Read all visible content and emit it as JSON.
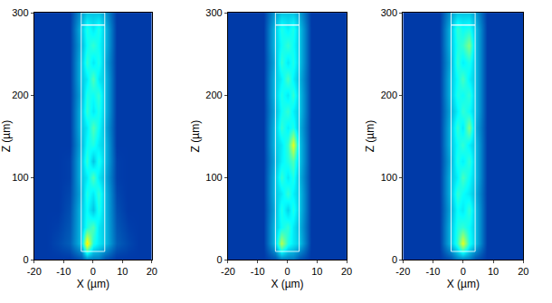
{
  "chart_data": [
    {
      "type": "heatmap",
      "x_label": "X (µm)",
      "y_label": "Z (µm)",
      "xlim": [
        -20,
        20
      ],
      "ylim": [
        0,
        300
      ],
      "xticks": [
        -20,
        -10,
        0,
        10,
        20
      ],
      "yticks": [
        0,
        100,
        200,
        300
      ],
      "zlim": [
        0,
        1
      ],
      "outline": {
        "x": [
          -4,
          4
        ],
        "y": [
          10,
          285
        ]
      },
      "grating": {
        "x": [
          -4,
          4
        ],
        "y": [
          285,
          300
        ]
      },
      "x": [
        -20,
        -16,
        -12,
        -8,
        -4,
        -2,
        0,
        2,
        4,
        8,
        12,
        16,
        20
      ],
      "y": [
        0,
        20,
        40,
        60,
        80,
        100,
        120,
        140,
        160,
        180,
        200,
        220,
        240,
        260,
        280,
        300
      ],
      "cells": [
        [
          0.12,
          0.12,
          0.12,
          0.12,
          0.15,
          0.2,
          0.2,
          0.2,
          0.15,
          0.12,
          0.12,
          0.12,
          0.12
        ],
        [
          0.12,
          0.12,
          0.14,
          0.17,
          0.3,
          0.65,
          0.4,
          0.35,
          0.3,
          0.17,
          0.14,
          0.12,
          0.12
        ],
        [
          0.12,
          0.12,
          0.13,
          0.16,
          0.3,
          0.4,
          0.45,
          0.35,
          0.3,
          0.16,
          0.13,
          0.12,
          0.12
        ],
        [
          0.12,
          0.12,
          0.12,
          0.15,
          0.3,
          0.38,
          0.3,
          0.4,
          0.3,
          0.15,
          0.12,
          0.12,
          0.12
        ],
        [
          0.12,
          0.12,
          0.12,
          0.14,
          0.28,
          0.4,
          0.35,
          0.42,
          0.3,
          0.14,
          0.12,
          0.12,
          0.12
        ],
        [
          0.12,
          0.12,
          0.12,
          0.13,
          0.3,
          0.35,
          0.45,
          0.35,
          0.28,
          0.13,
          0.12,
          0.12,
          0.12
        ],
        [
          0.12,
          0.12,
          0.12,
          0.13,
          0.3,
          0.42,
          0.3,
          0.4,
          0.3,
          0.13,
          0.12,
          0.12,
          0.12
        ],
        [
          0.12,
          0.12,
          0.12,
          0.12,
          0.28,
          0.38,
          0.4,
          0.35,
          0.3,
          0.12,
          0.12,
          0.12,
          0.12
        ],
        [
          0.12,
          0.12,
          0.12,
          0.12,
          0.3,
          0.35,
          0.45,
          0.38,
          0.28,
          0.12,
          0.12,
          0.12,
          0.12
        ],
        [
          0.12,
          0.12,
          0.12,
          0.12,
          0.3,
          0.42,
          0.35,
          0.4,
          0.3,
          0.12,
          0.12,
          0.12,
          0.12
        ],
        [
          0.12,
          0.12,
          0.12,
          0.12,
          0.28,
          0.4,
          0.38,
          0.42,
          0.3,
          0.12,
          0.12,
          0.12,
          0.12
        ],
        [
          0.12,
          0.12,
          0.12,
          0.12,
          0.3,
          0.35,
          0.45,
          0.35,
          0.3,
          0.12,
          0.12,
          0.12,
          0.12
        ],
        [
          0.12,
          0.12,
          0.12,
          0.12,
          0.3,
          0.42,
          0.35,
          0.4,
          0.28,
          0.12,
          0.12,
          0.12,
          0.12
        ],
        [
          0.12,
          0.12,
          0.12,
          0.12,
          0.28,
          0.38,
          0.42,
          0.38,
          0.3,
          0.12,
          0.12,
          0.12,
          0.12
        ],
        [
          0.12,
          0.12,
          0.12,
          0.12,
          0.3,
          0.4,
          0.35,
          0.4,
          0.3,
          0.12,
          0.12,
          0.12,
          0.12
        ],
        [
          0.12,
          0.12,
          0.12,
          0.12,
          0.25,
          0.3,
          0.3,
          0.3,
          0.25,
          0.12,
          0.12,
          0.12,
          0.12
        ]
      ]
    },
    {
      "type": "heatmap",
      "x_label": "X (µm)",
      "y_label": "Z (µm)",
      "xlim": [
        -20,
        20
      ],
      "ylim": [
        0,
        300
      ],
      "xticks": [
        -20,
        -10,
        0,
        10,
        20
      ],
      "yticks": [
        0,
        100,
        200,
        300
      ],
      "zlim": [
        0,
        1
      ],
      "outline": {
        "x": [
          -4,
          4
        ],
        "y": [
          10,
          285
        ]
      },
      "grating": {
        "x": [
          -4,
          4
        ],
        "y": [
          285,
          300
        ]
      },
      "x": [
        -20,
        -16,
        -12,
        -8,
        -4,
        -2,
        0,
        2,
        4,
        8,
        12,
        16,
        20
      ],
      "y": [
        0,
        20,
        40,
        60,
        80,
        100,
        120,
        140,
        160,
        180,
        200,
        220,
        240,
        260,
        280,
        300
      ],
      "cells": [
        [
          0.12,
          0.12,
          0.12,
          0.12,
          0.15,
          0.2,
          0.2,
          0.2,
          0.15,
          0.12,
          0.12,
          0.12,
          0.12
        ],
        [
          0.12,
          0.12,
          0.12,
          0.12,
          0.3,
          0.55,
          0.4,
          0.35,
          0.3,
          0.12,
          0.12,
          0.12,
          0.12
        ],
        [
          0.12,
          0.12,
          0.12,
          0.12,
          0.3,
          0.38,
          0.42,
          0.35,
          0.28,
          0.12,
          0.12,
          0.12,
          0.12
        ],
        [
          0.12,
          0.12,
          0.12,
          0.12,
          0.28,
          0.4,
          0.32,
          0.4,
          0.3,
          0.12,
          0.12,
          0.12,
          0.12
        ],
        [
          0.12,
          0.12,
          0.12,
          0.12,
          0.3,
          0.35,
          0.42,
          0.36,
          0.3,
          0.12,
          0.12,
          0.12,
          0.12
        ],
        [
          0.12,
          0.12,
          0.12,
          0.12,
          0.3,
          0.42,
          0.35,
          0.4,
          0.28,
          0.12,
          0.12,
          0.12,
          0.12
        ],
        [
          0.12,
          0.12,
          0.12,
          0.12,
          0.28,
          0.36,
          0.4,
          0.45,
          0.3,
          0.12,
          0.12,
          0.12,
          0.12
        ],
        [
          0.12,
          0.12,
          0.12,
          0.12,
          0.3,
          0.35,
          0.42,
          0.6,
          0.3,
          0.12,
          0.12,
          0.12,
          0.12
        ],
        [
          0.12,
          0.12,
          0.12,
          0.12,
          0.3,
          0.42,
          0.36,
          0.4,
          0.28,
          0.12,
          0.12,
          0.12,
          0.12
        ],
        [
          0.12,
          0.12,
          0.12,
          0.12,
          0.28,
          0.38,
          0.42,
          0.36,
          0.3,
          0.12,
          0.12,
          0.12,
          0.12
        ],
        [
          0.12,
          0.12,
          0.12,
          0.12,
          0.3,
          0.4,
          0.35,
          0.42,
          0.3,
          0.12,
          0.12,
          0.12,
          0.12
        ],
        [
          0.12,
          0.12,
          0.12,
          0.12,
          0.3,
          0.36,
          0.44,
          0.36,
          0.28,
          0.12,
          0.12,
          0.12,
          0.12
        ],
        [
          0.12,
          0.12,
          0.12,
          0.12,
          0.28,
          0.42,
          0.35,
          0.4,
          0.3,
          0.12,
          0.12,
          0.12,
          0.12
        ],
        [
          0.12,
          0.12,
          0.12,
          0.12,
          0.3,
          0.38,
          0.42,
          0.38,
          0.3,
          0.12,
          0.12,
          0.12,
          0.12
        ],
        [
          0.12,
          0.12,
          0.12,
          0.12,
          0.3,
          0.4,
          0.36,
          0.4,
          0.3,
          0.12,
          0.12,
          0.12,
          0.12
        ],
        [
          0.12,
          0.12,
          0.12,
          0.12,
          0.25,
          0.3,
          0.3,
          0.3,
          0.25,
          0.12,
          0.12,
          0.12,
          0.12
        ]
      ]
    },
    {
      "type": "heatmap",
      "x_label": "X (µm)",
      "y_label": "Z (µm)",
      "xlim": [
        -20,
        20
      ],
      "ylim": [
        0,
        300
      ],
      "xticks": [
        -20,
        -10,
        0,
        10,
        20
      ],
      "yticks": [
        0,
        100,
        200,
        300
      ],
      "zlim": [
        0,
        1
      ],
      "outline": {
        "x": [
          -4,
          4
        ],
        "y": [
          10,
          285
        ]
      },
      "grating": {
        "x": [
          -4,
          4
        ],
        "y": [
          285,
          300
        ]
      },
      "x": [
        -20,
        -16,
        -12,
        -8,
        -4,
        -2,
        0,
        2,
        4,
        8,
        12,
        16,
        20
      ],
      "y": [
        0,
        20,
        40,
        60,
        80,
        100,
        120,
        140,
        160,
        180,
        200,
        220,
        240,
        260,
        280,
        300
      ],
      "cells": [
        [
          0.12,
          0.12,
          0.12,
          0.12,
          0.15,
          0.2,
          0.2,
          0.2,
          0.15,
          0.12,
          0.12,
          0.12,
          0.12
        ],
        [
          0.12,
          0.12,
          0.12,
          0.12,
          0.3,
          0.42,
          0.6,
          0.4,
          0.3,
          0.12,
          0.12,
          0.12,
          0.12
        ],
        [
          0.12,
          0.12,
          0.12,
          0.12,
          0.3,
          0.4,
          0.42,
          0.38,
          0.3,
          0.12,
          0.12,
          0.12,
          0.12
        ],
        [
          0.12,
          0.12,
          0.12,
          0.12,
          0.28,
          0.38,
          0.35,
          0.42,
          0.3,
          0.12,
          0.12,
          0.12,
          0.12
        ],
        [
          0.12,
          0.12,
          0.12,
          0.12,
          0.3,
          0.42,
          0.38,
          0.35,
          0.28,
          0.12,
          0.12,
          0.12,
          0.12
        ],
        [
          0.12,
          0.12,
          0.12,
          0.12,
          0.3,
          0.36,
          0.44,
          0.38,
          0.3,
          0.12,
          0.12,
          0.12,
          0.12
        ],
        [
          0.12,
          0.12,
          0.12,
          0.12,
          0.28,
          0.4,
          0.36,
          0.42,
          0.3,
          0.12,
          0.12,
          0.12,
          0.12
        ],
        [
          0.12,
          0.12,
          0.12,
          0.12,
          0.3,
          0.38,
          0.42,
          0.36,
          0.3,
          0.12,
          0.12,
          0.12,
          0.12
        ],
        [
          0.12,
          0.12,
          0.12,
          0.12,
          0.3,
          0.42,
          0.35,
          0.5,
          0.28,
          0.12,
          0.12,
          0.12,
          0.12
        ],
        [
          0.12,
          0.12,
          0.12,
          0.12,
          0.28,
          0.36,
          0.42,
          0.38,
          0.3,
          0.12,
          0.12,
          0.12,
          0.12
        ],
        [
          0.12,
          0.12,
          0.12,
          0.12,
          0.3,
          0.4,
          0.38,
          0.42,
          0.3,
          0.12,
          0.12,
          0.12,
          0.12
        ],
        [
          0.12,
          0.12,
          0.12,
          0.12,
          0.3,
          0.38,
          0.44,
          0.36,
          0.3,
          0.12,
          0.12,
          0.12,
          0.12
        ],
        [
          0.12,
          0.12,
          0.12,
          0.12,
          0.28,
          0.42,
          0.36,
          0.4,
          0.3,
          0.12,
          0.12,
          0.12,
          0.12
        ],
        [
          0.12,
          0.12,
          0.12,
          0.12,
          0.3,
          0.4,
          0.42,
          0.5,
          0.3,
          0.12,
          0.12,
          0.12,
          0.12
        ],
        [
          0.12,
          0.12,
          0.12,
          0.12,
          0.3,
          0.42,
          0.38,
          0.4,
          0.3,
          0.12,
          0.12,
          0.12,
          0.12
        ],
        [
          0.12,
          0.12,
          0.12,
          0.12,
          0.25,
          0.3,
          0.3,
          0.3,
          0.25,
          0.12,
          0.12,
          0.12,
          0.12
        ]
      ]
    }
  ]
}
